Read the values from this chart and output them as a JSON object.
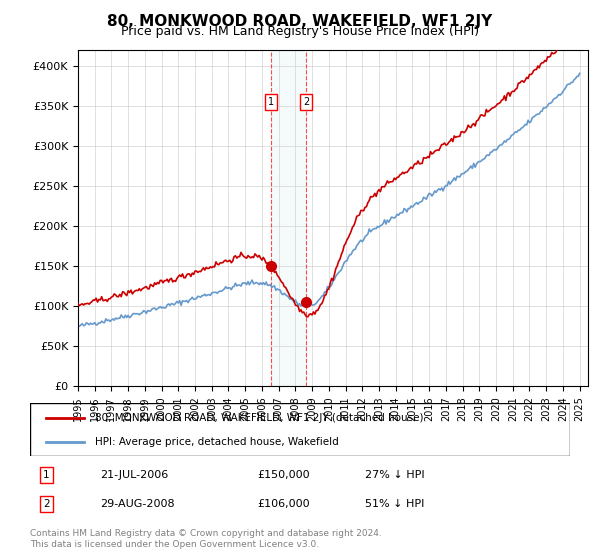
{
  "title": "80, MONKWOOD ROAD, WAKEFIELD, WF1 2JY",
  "subtitle": "Price paid vs. HM Land Registry's House Price Index (HPI)",
  "legend_line1": "80, MONKWOOD ROAD, WAKEFIELD, WF1 2JY (detached house)",
  "legend_line2": "HPI: Average price, detached house, Wakefield",
  "footer": "Contains HM Land Registry data © Crown copyright and database right 2024.\nThis data is licensed under the Open Government Licence v3.0.",
  "transaction1": {
    "label": "1",
    "date": "21-JUL-2006",
    "price": 150000,
    "hpi_pct": "27% ↓ HPI"
  },
  "transaction2": {
    "label": "2",
    "date": "29-AUG-2008",
    "price": 106000,
    "hpi_pct": "51% ↓ HPI"
  },
  "hpi_color": "#6699cc",
  "price_color": "#cc0000",
  "marker1_x": 2006.55,
  "marker1_y": 150000,
  "marker2_x": 2008.66,
  "marker2_y": 106000,
  "vline1_x": 2006.55,
  "vline2_x": 2008.66,
  "ylim": [
    0,
    420000
  ],
  "xlim_start": 1995,
  "xlim_end": 2025.5,
  "yticks": [
    0,
    50000,
    100000,
    150000,
    200000,
    250000,
    300000,
    350000,
    400000
  ],
  "ytick_labels": [
    "£0",
    "£50K",
    "£100K",
    "£150K",
    "£200K",
    "£250K",
    "£300K",
    "£350K",
    "£400K"
  ],
  "xticks": [
    1995,
    1996,
    1997,
    1998,
    1999,
    2000,
    2001,
    2002,
    2003,
    2004,
    2005,
    2006,
    2007,
    2008,
    2009,
    2010,
    2011,
    2012,
    2013,
    2014,
    2015,
    2016,
    2017,
    2018,
    2019,
    2020,
    2021,
    2022,
    2023,
    2024,
    2025
  ]
}
